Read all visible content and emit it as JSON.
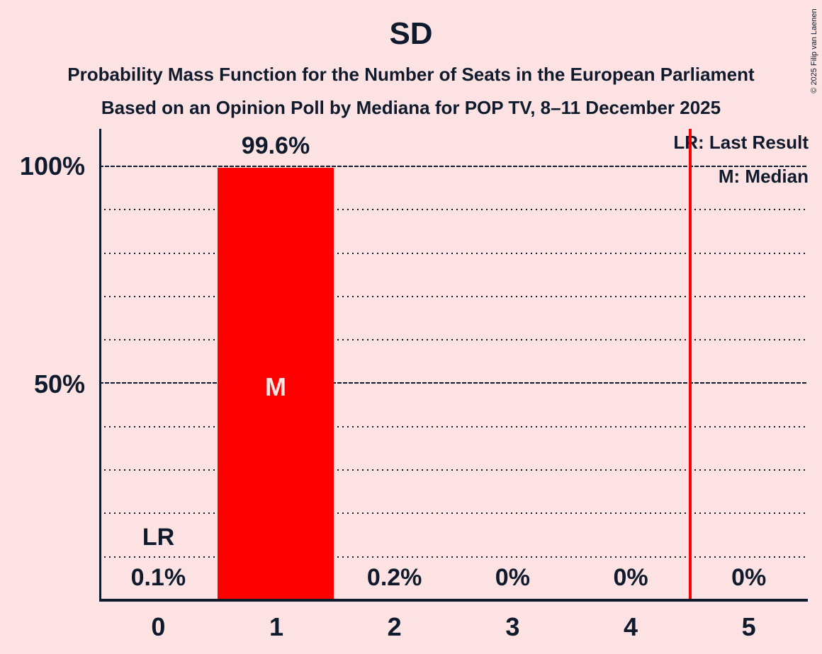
{
  "title": "SD",
  "subtitles": [
    "Probability Mass Function for the Number of Seats in the European Parliament",
    "Based on an Opinion Poll by Mediana for POP TV, 8–11 December 2025"
  ],
  "copyright": "© 2025 Filip van Laenen",
  "legend": {
    "last_result": "LR: Last Result",
    "median": "M: Median"
  },
  "annotations": {
    "last_result_marker": "LR",
    "median_marker": "M"
  },
  "y_axis": {
    "tick_100": "100%",
    "tick_50": "50%"
  },
  "colors": {
    "background": "#fce2e2",
    "bar": "#ff0000",
    "vertical_line": "#ff0000",
    "text": "#0f1b2d",
    "median_letter": "#fbe4e4"
  },
  "chart_data": {
    "type": "bar",
    "title": "SD",
    "categories": [
      "0",
      "1",
      "2",
      "3",
      "4",
      "5"
    ],
    "values": [
      0.1,
      99.6,
      0.2,
      0,
      0,
      0
    ],
    "value_labels": [
      "0.1%",
      "99.6%",
      "0.2%",
      "0%",
      "0%",
      "0%"
    ],
    "xlabel": "",
    "ylabel": "",
    "ylim": [
      0,
      100
    ],
    "ytick_labels": [
      "100%",
      "50%"
    ],
    "grid": "dotted horizontal lines every 10%, dense dashed at 50% and 100%",
    "legend_position": "top-right",
    "median_seats": 1,
    "last_result_seats": 0,
    "red_vertical_line_x": 4.5
  }
}
